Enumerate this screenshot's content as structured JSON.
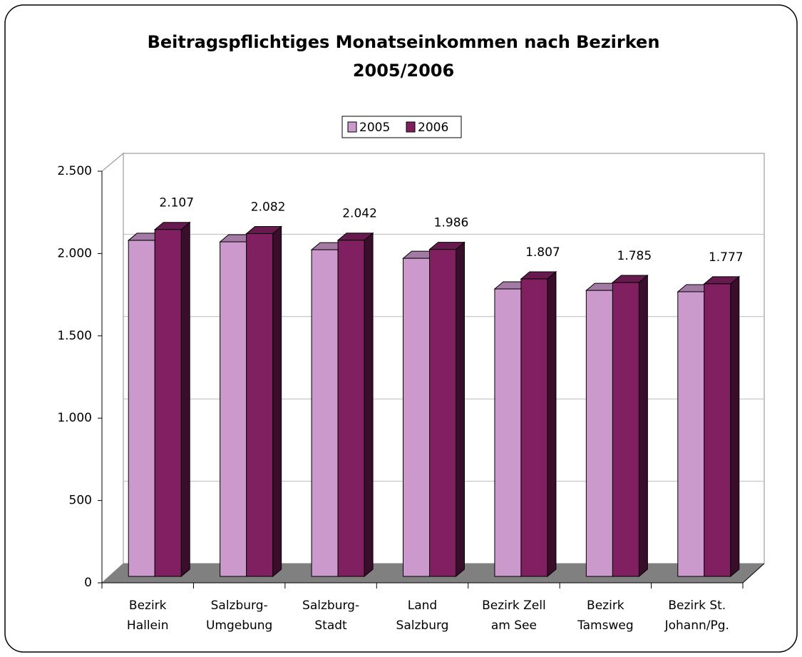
{
  "chart_data": {
    "type": "bar3d",
    "title": [
      "Beitragspflichtiges Monatseinkommen nach Bezirken",
      "2005/2006"
    ],
    "categories": [
      [
        "Bezirk",
        "Hallein"
      ],
      [
        "Salzburg-",
        "Umgebung"
      ],
      [
        "Salzburg-",
        "Stadt"
      ],
      [
        "Land",
        "Salzburg"
      ],
      [
        "Bezirk Zell",
        "am See"
      ],
      [
        "Bezirk",
        "Tamsweg"
      ],
      [
        "Bezirk St.",
        "Johann/Pg."
      ]
    ],
    "series": [
      {
        "name": "2005",
        "color": "#cc99cc",
        "values": [
          2041,
          2032,
          1984,
          1932,
          1746,
          1737,
          1729
        ]
      },
      {
        "name": "2006",
        "color": "#802060",
        "values": [
          2107,
          2082,
          2042,
          1986,
          1807,
          1785,
          1777
        ],
        "value_labels": [
          "2.107",
          "2.082",
          "2.042",
          "1.986",
          "1.807",
          "1.785",
          "1.777"
        ]
      }
    ],
    "ylim": [
      0,
      2500
    ],
    "yticks": [
      0,
      500,
      {
        "value": 1000,
        "label": "1.000"
      },
      {
        "value": 1500,
        "label": "1.500"
      },
      {
        "value": 2000,
        "label": "2.000"
      },
      {
        "value": 2500,
        "label": "2.500"
      }
    ],
    "grid": true,
    "legend": "top"
  }
}
